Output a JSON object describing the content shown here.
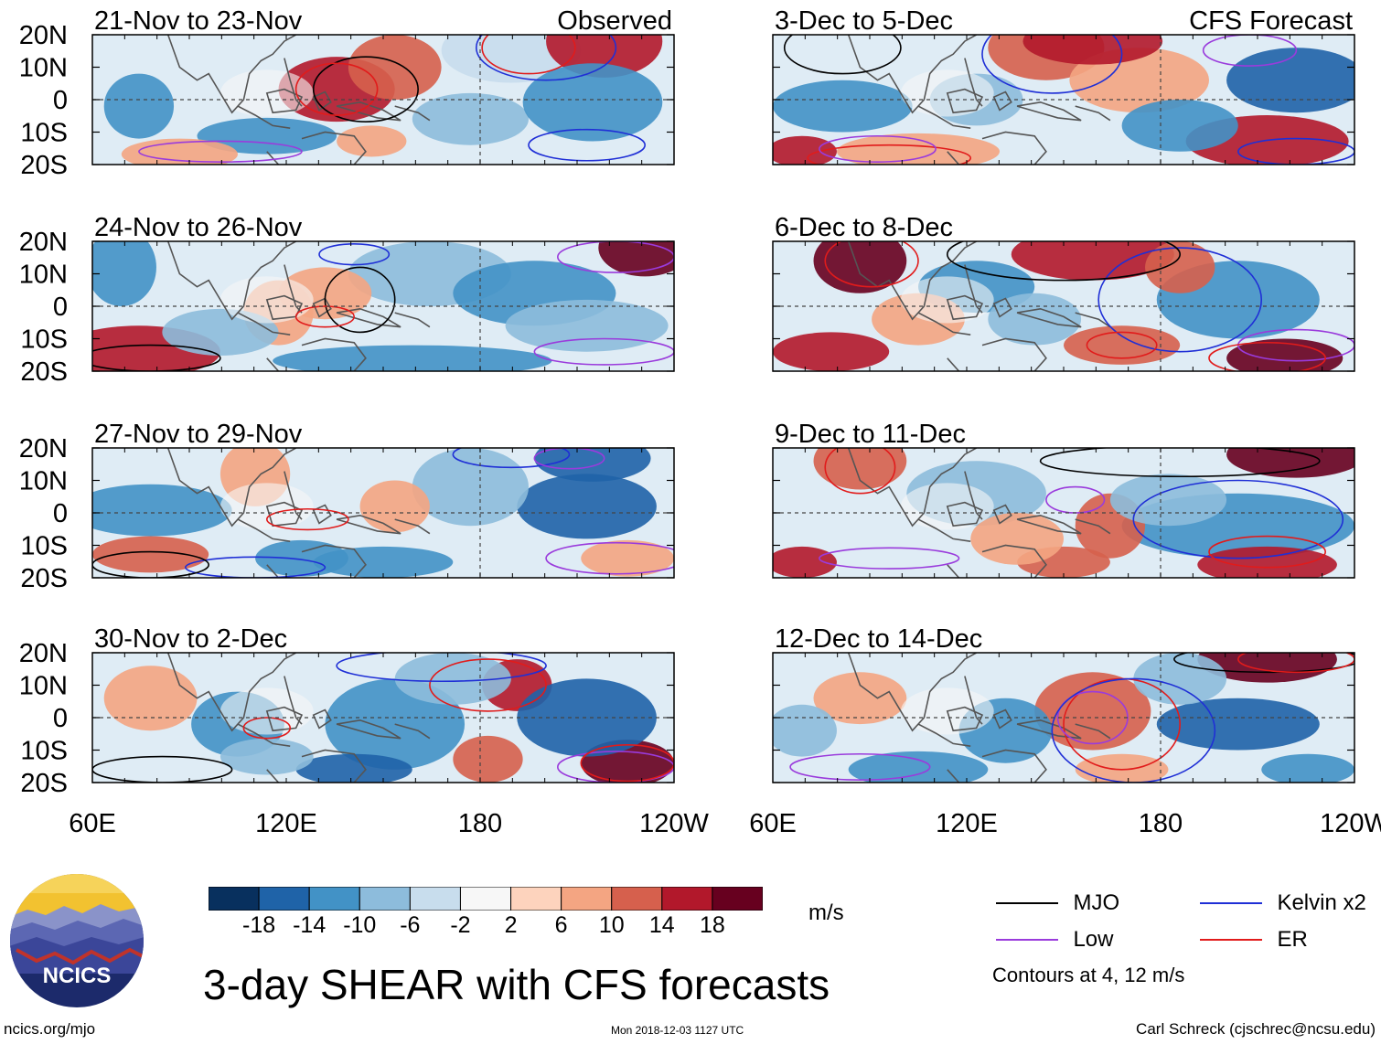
{
  "panels": {
    "left": [
      {
        "period": "21-Nov to 23-Nov",
        "tag": "Observed"
      },
      {
        "period": "24-Nov to 26-Nov",
        "tag": ""
      },
      {
        "period": "27-Nov to 29-Nov",
        "tag": ""
      },
      {
        "period": "30-Nov to 2-Dec",
        "tag": ""
      }
    ],
    "right": [
      {
        "period": "3-Dec to 5-Dec",
        "tag": "CFS Forecast"
      },
      {
        "period": "6-Dec to 8-Dec",
        "tag": ""
      },
      {
        "period": "9-Dec to 11-Dec",
        "tag": ""
      },
      {
        "period": "12-Dec to 14-Dec",
        "tag": ""
      }
    ]
  },
  "axes": {
    "lat_labels": [
      "20N",
      "10N",
      "0",
      "10S",
      "20S"
    ],
    "lon_labels": [
      "60E",
      "120E",
      "180",
      "120W"
    ]
  },
  "colorbar": {
    "labels": [
      "-18",
      "-14",
      "-10",
      "-6",
      "-2",
      "2",
      "6",
      "10",
      "14",
      "18"
    ],
    "colors": [
      "#08305e",
      "#1f63a8",
      "#4292c6",
      "#8dbcdc",
      "#c8dded",
      "#f7f7f7",
      "#fdd3bd",
      "#f4a582",
      "#d6604d",
      "#b2182b",
      "#67001f"
    ],
    "unit": "m/s"
  },
  "legend": {
    "items": [
      {
        "label": "MJO",
        "color": "#000000"
      },
      {
        "label": "Kelvin x2",
        "color": "#1f2fd6"
      },
      {
        "label": "Low",
        "color": "#9a3bdc"
      },
      {
        "label": "ER",
        "color": "#e11b1b"
      }
    ],
    "note": "Contours at 4, 12 m/s"
  },
  "title": "3-day SHEAR with CFS forecasts",
  "footer": {
    "site": "ncics.org/mjo",
    "timestamp": "Mon 2018-12-03 1127 UTC",
    "credit": "Carl Schreck (cjschrec@ncsu.edu)"
  },
  "logo": {
    "text": "NCICS"
  }
}
